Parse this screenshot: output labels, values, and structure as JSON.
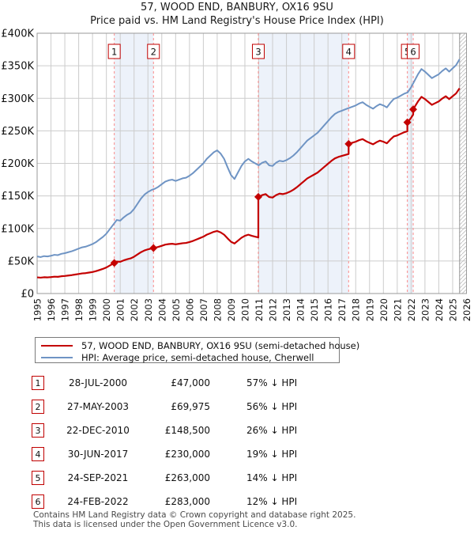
{
  "title": "57, WOOD END, BANBURY, OX16 9SU",
  "subtitle": "Price paid vs. HM Land Registry's House Price Index (HPI)",
  "chart_data": {
    "type": "line",
    "x_range": [
      1995,
      2026
    ],
    "y_range": [
      0,
      400000
    ],
    "grid": true,
    "legend_position": "bottom",
    "y_tick_values": [
      0,
      50000,
      100000,
      150000,
      200000,
      250000,
      300000,
      350000,
      400000
    ],
    "y_tick_labels": [
      "£0",
      "£50K",
      "£100K",
      "£150K",
      "£200K",
      "£250K",
      "£300K",
      "£350K",
      "£400K"
    ],
    "x_tick_years_from": 1995,
    "x_tick_years_to": 2026,
    "colors": {
      "property_line": "#c40000",
      "hpi_line": "#6f94c4",
      "ownership_band": "#edf2fa",
      "grid": "#cccccc",
      "plot_border": "#999999",
      "event_line": "#fa8a8a",
      "event_box_border": "#c00000",
      "hatch": "#bbbbbb",
      "axis_text": "#111111"
    },
    "shaded_periods": [
      [
        2000.57,
        2003.4
      ],
      [
        2010.97,
        2017.49
      ],
      [
        2021.73,
        2022.15
      ]
    ],
    "future_hatch_from_x": 2025.5,
    "series": [
      {
        "name": "57, WOOD END, BANBURY, OX16 9SU (semi-detached house)",
        "type": "derived",
        "derivation": "price_paid_at_each_sale_scaled_by_hpi_between_sales"
      },
      {
        "name": "HPI: Average price, semi-detached house, Cherwell",
        "type": "hpi"
      }
    ],
    "hpi": {
      "x_start": 1995,
      "x_step": 0.25,
      "values": [
        57000,
        56000,
        57500,
        57000,
        58000,
        59500,
        59000,
        61000,
        62000,
        63500,
        65000,
        67000,
        69000,
        71000,
        72000,
        74000,
        76000,
        79000,
        83000,
        87000,
        92000,
        99000,
        106000,
        113000,
        112000,
        117000,
        121000,
        124000,
        130000,
        138000,
        146000,
        152000,
        156000,
        159000,
        161000,
        164000,
        168000,
        172000,
        174000,
        175000,
        173000,
        175000,
        177000,
        178000,
        181000,
        185000,
        190000,
        195000,
        200000,
        207000,
        212000,
        217000,
        220000,
        215000,
        207000,
        194000,
        182000,
        176000,
        186000,
        196000,
        203000,
        207000,
        203000,
        200000,
        197000,
        201000,
        203000,
        197000,
        196000,
        201000,
        204000,
        203000,
        205000,
        208000,
        212000,
        217000,
        223000,
        229000,
        235000,
        239000,
        243000,
        247000,
        253000,
        259000,
        265000,
        271000,
        276000,
        279000,
        281000,
        283000,
        285000,
        287000,
        289000,
        292000,
        294000,
        290000,
        287000,
        284000,
        288000,
        291000,
        289000,
        286000,
        293000,
        299000,
        301000,
        304000,
        307000,
        309000,
        317000,
        327000,
        337000,
        345000,
        341000,
        336000,
        331000,
        334000,
        337000,
        342000,
        346000,
        341000,
        346000,
        351000,
        360000
      ]
    },
    "sales": [
      {
        "n": "1",
        "x": 2000.57,
        "price": 47000,
        "date": "28-JUL-2000",
        "price_label": "£47,000",
        "vs_hpi": "57% ↓ HPI"
      },
      {
        "n": "2",
        "x": 2003.4,
        "price": 69975,
        "date": "27-MAY-2003",
        "price_label": "£69,975",
        "vs_hpi": "56% ↓ HPI"
      },
      {
        "n": "3",
        "x": 2010.97,
        "price": 148500,
        "date": "22-DEC-2010",
        "price_label": "£148,500",
        "vs_hpi": "26% ↓ HPI"
      },
      {
        "n": "4",
        "x": 2017.49,
        "price": 230000,
        "date": "30-JUN-2017",
        "price_label": "£230,000",
        "vs_hpi": "19% ↓ HPI"
      },
      {
        "n": "5",
        "x": 2021.73,
        "price": 263000,
        "date": "24-SEP-2021",
        "price_label": "£263,000",
        "vs_hpi": "14% ↓ HPI"
      },
      {
        "n": "6",
        "x": 2022.15,
        "price": 283000,
        "date": "24-FEB-2022",
        "price_label": "£283,000",
        "vs_hpi": "12% ↓ HPI"
      }
    ]
  },
  "legend": {
    "items": [
      {
        "label": "57, WOOD END, BANBURY, OX16 9SU (semi-detached house)",
        "color": "#c40000"
      },
      {
        "label": "HPI: Average price, semi-detached house, Cherwell",
        "color": "#6f94c4"
      }
    ]
  },
  "footer": {
    "line1": "Contains HM Land Registry data © Crown copyright and database right 2025.",
    "line2": "This data is licensed under the Open Government Licence v3.0."
  }
}
